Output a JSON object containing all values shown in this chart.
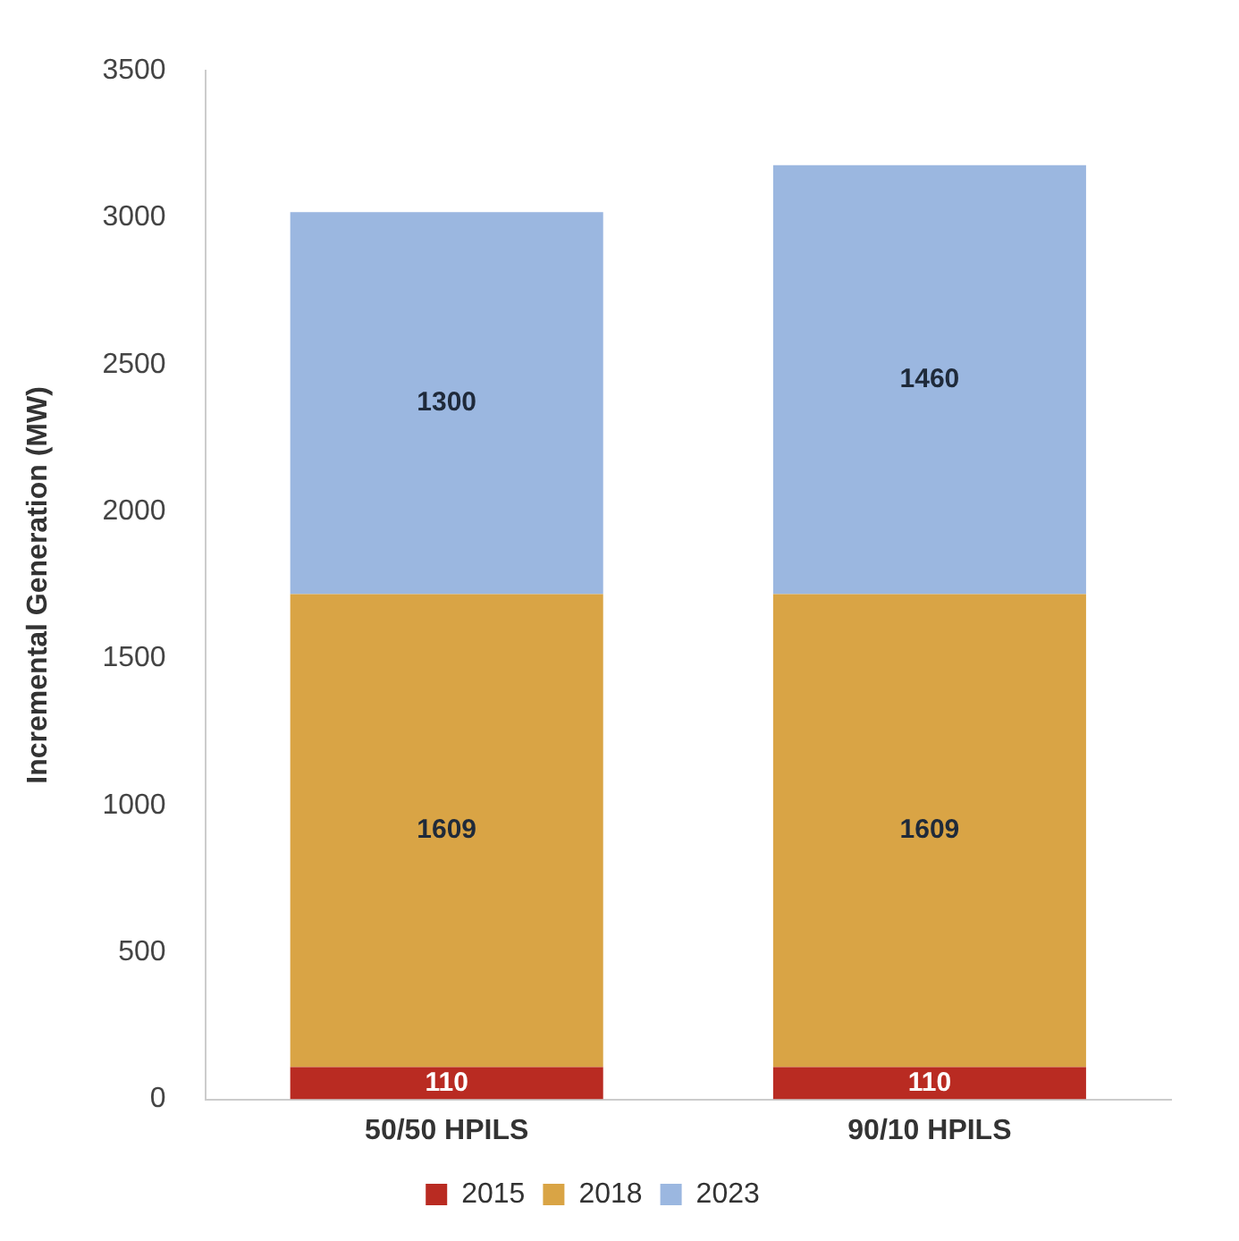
{
  "chart_data": {
    "type": "bar",
    "stacked": true,
    "ylabel": "Incremental Generation (MW)",
    "categories": [
      "50/50 HPILS",
      "90/10 HPILS"
    ],
    "series": [
      {
        "name": "2015",
        "color": "#b92b22",
        "values": [
          110,
          110
        ]
      },
      {
        "name": "2018",
        "color": "#d9a445",
        "values": [
          1609,
          1609
        ]
      },
      {
        "name": "2023",
        "color": "#9bb7e0",
        "values": [
          1300,
          1460
        ]
      }
    ],
    "ylim": [
      0,
      3500
    ],
    "yticks": [
      0,
      500,
      1000,
      1500,
      2000,
      2500,
      3000,
      3500
    ],
    "grid": false,
    "legend": "bottom",
    "data_labels": true
  }
}
